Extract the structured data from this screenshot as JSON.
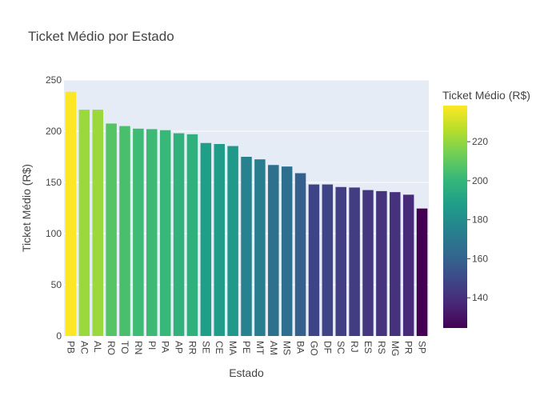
{
  "chart_data": {
    "type": "bar",
    "title": "Ticket Médio por Estado",
    "xlabel": "Estado",
    "ylabel": "Ticket Médio (R$)",
    "ylim": [
      0,
      250
    ],
    "yticks": [
      0,
      50,
      100,
      150,
      200,
      250
    ],
    "grid": true,
    "categories": [
      "PB",
      "AC",
      "AL",
      "RO",
      "TO",
      "RN",
      "PI",
      "PA",
      "AP",
      "RR",
      "SE",
      "CE",
      "MA",
      "PE",
      "MT",
      "AM",
      "MS",
      "BA",
      "GO",
      "DF",
      "SC",
      "RJ",
      "ES",
      "RS",
      "MG",
      "PR",
      "SP"
    ],
    "values": [
      238.5,
      221,
      221,
      207.5,
      205,
      202.5,
      202,
      201,
      198,
      197,
      188.5,
      187.5,
      185.5,
      175,
      172.5,
      167,
      165.5,
      159,
      148,
      148,
      145.5,
      145,
      142.5,
      141.5,
      140.5,
      138,
      124.5
    ],
    "colorbar": {
      "title": "Ticket Médio (R$)",
      "min": 124.5,
      "max": 238.5,
      "ticks": [
        140,
        160,
        180,
        200,
        220
      ],
      "colorscale": "Viridis"
    }
  }
}
